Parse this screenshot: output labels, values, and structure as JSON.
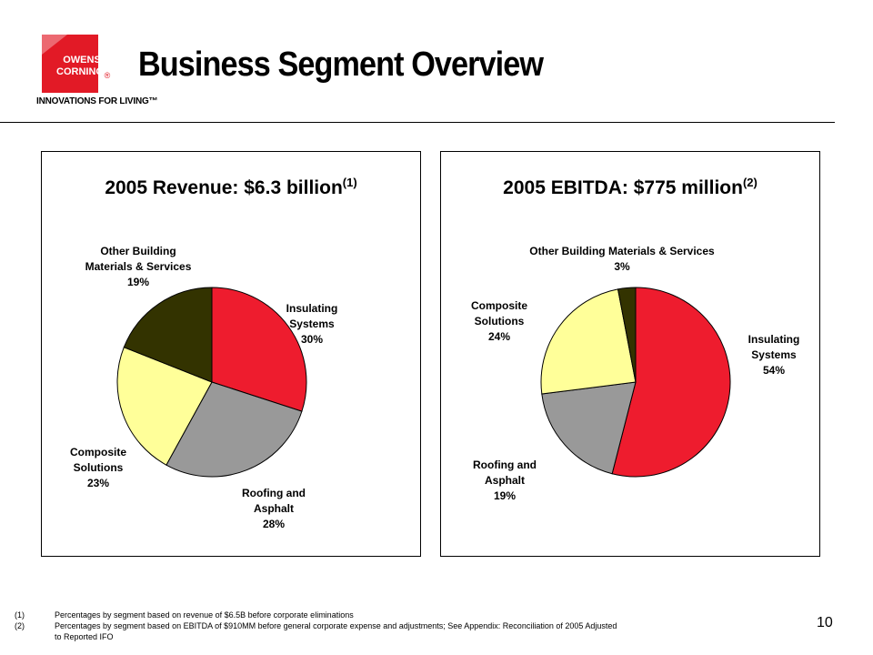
{
  "logo": {
    "line1": "OWENS",
    "line2": "CORNING",
    "registered": "®",
    "tagline": "INNOVATIONS FOR LIVING™",
    "brand_color": "#e21a26"
  },
  "title": "Business Segment Overview",
  "chart_data": [
    {
      "type": "pie",
      "title": "2005 Revenue: $6.3 billion",
      "title_note": "(1)",
      "slices": [
        {
          "label": [
            "Insulating",
            "Systems",
            "30%"
          ],
          "value": 30,
          "color": "#ee1c2e"
        },
        {
          "label": [
            "Roofing and",
            "Asphalt",
            "28%"
          ],
          "value": 28,
          "color": "#999999"
        },
        {
          "label": [
            "Composite",
            "Solutions",
            "23%"
          ],
          "value": 23,
          "color": "#ffff99"
        },
        {
          "label": [
            "Other Building",
            "Materials & Services",
            "19%"
          ],
          "value": 19,
          "color": "#333300"
        }
      ]
    },
    {
      "type": "pie",
      "title": "2005 EBITDA: $775  million",
      "title_note": "(2)",
      "slices": [
        {
          "label": [
            "Insulating",
            "Systems",
            "54%"
          ],
          "value": 54,
          "color": "#ee1c2e"
        },
        {
          "label": [
            "Roofing and",
            "Asphalt",
            "19%"
          ],
          "value": 19,
          "color": "#999999"
        },
        {
          "label": [
            "Composite",
            "Solutions",
            "24%"
          ],
          "value": 24,
          "color": "#ffff99"
        },
        {
          "label": [
            "Other Building Materials & Services",
            "3%"
          ],
          "value": 3,
          "color": "#333300"
        }
      ]
    }
  ],
  "footnotes": [
    {
      "num": "(1)",
      "text": "Percentages by segment based on revenue of $6.5B before corporate eliminations"
    },
    {
      "num": "(2)",
      "text": "Percentages by segment based on EBITDA of $910MM before general corporate expense and adjustments; See Appendix: Reconciliation of 2005 Adjusted to Reported IFO"
    }
  ],
  "page_number": "10"
}
